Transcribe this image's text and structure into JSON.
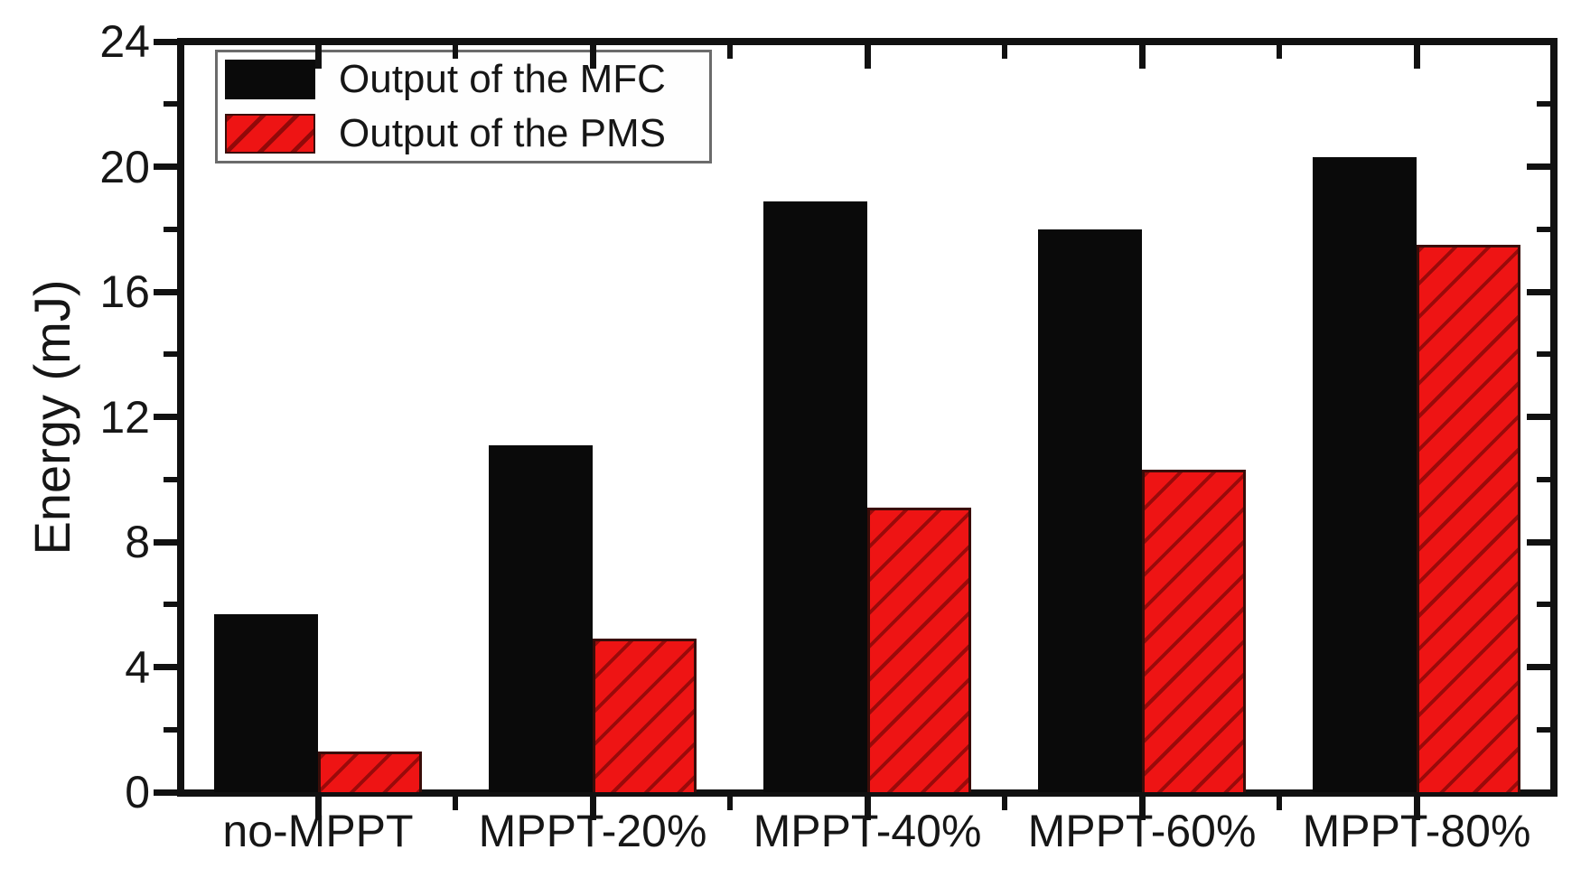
{
  "chart_data": {
    "type": "bar",
    "categories": [
      "no-MPPT",
      "MPPT-20%",
      "MPPT-40%",
      "MPPT-60%",
      "MPPT-80%"
    ],
    "series": [
      {
        "name": "Output of the MFC",
        "color": "#0a0a0a",
        "hatch": "none",
        "values": [
          5.7,
          11.1,
          18.9,
          18.0,
          20.3
        ]
      },
      {
        "name": "Output of the PMS",
        "color": "#ee1414",
        "hatch": "diagonal-forward",
        "values": [
          1.3,
          4.9,
          9.1,
          10.3,
          17.5
        ]
      }
    ],
    "title": "",
    "xlabel": "",
    "ylabel": "Energy (mJ)",
    "ylim": [
      0,
      24
    ],
    "y_major_ticks": [
      0,
      4,
      8,
      12,
      16,
      20,
      24
    ],
    "y_minor_step": 2,
    "x_tick_style": "major ticks at category centers, minor ticks at category boundaries",
    "tick_mirroring": "top and right spines repeat ticks pointing inward",
    "grid": false,
    "legend_position": "top-left",
    "axis_color": "#111111",
    "text_color": "#161616"
  }
}
